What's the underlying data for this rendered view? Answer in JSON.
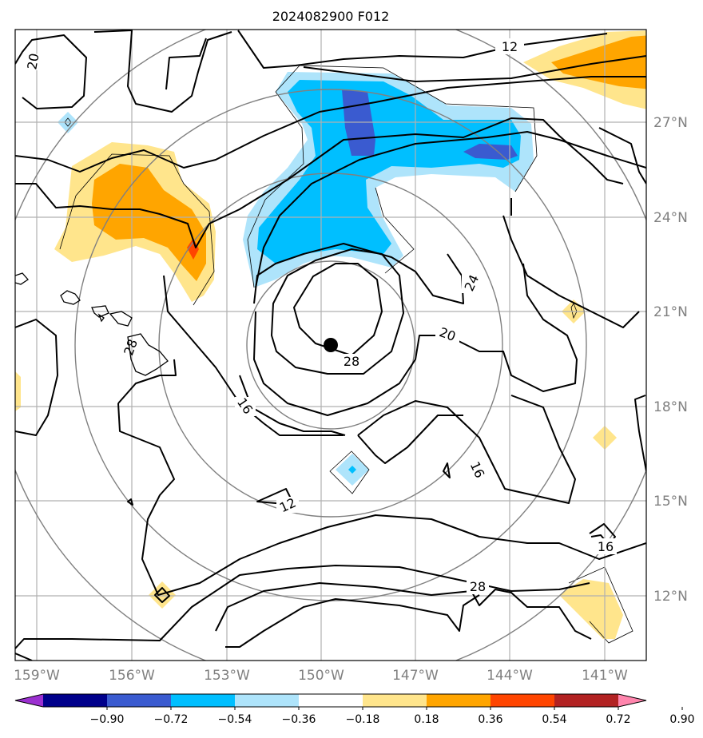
{
  "title": "2024082900 F012",
  "lon_labels": [
    "159°W",
    "156°W",
    "153°W",
    "150°W",
    "147°W",
    "144°W",
    "141°W"
  ],
  "lat_labels": [
    "27°N",
    "24°N",
    "21°N",
    "18°N",
    "15°N",
    "12°N"
  ],
  "contour_labels": [
    "12",
    "20",
    "24",
    "20",
    "28",
    "16",
    "16",
    "12",
    "16",
    "28",
    "28"
  ],
  "colorbar": {
    "ticks": [
      "−0.90",
      "−0.72",
      "−0.54",
      "−0.36",
      "−0.18",
      "0.18",
      "0.36",
      "0.54",
      "0.72",
      "0.90"
    ],
    "colors": [
      "#9b30d0",
      "#00008b",
      "#3a5bd0",
      "#00bfff",
      "#aee4fb",
      "#ffffff",
      "#ffe58c",
      "#ffa500",
      "#ff4500",
      "#b22222",
      "#ff85ad"
    ]
  },
  "fill_colors": {
    "light_blue": "#aee4fb",
    "blue": "#00bfff",
    "royal_blue": "#3a5bd0",
    "light_yellow": "#ffe58c",
    "orange": "#ffa500",
    "red_orange": "#ff4500"
  },
  "storm_center_marker": "storm-center-dot"
}
